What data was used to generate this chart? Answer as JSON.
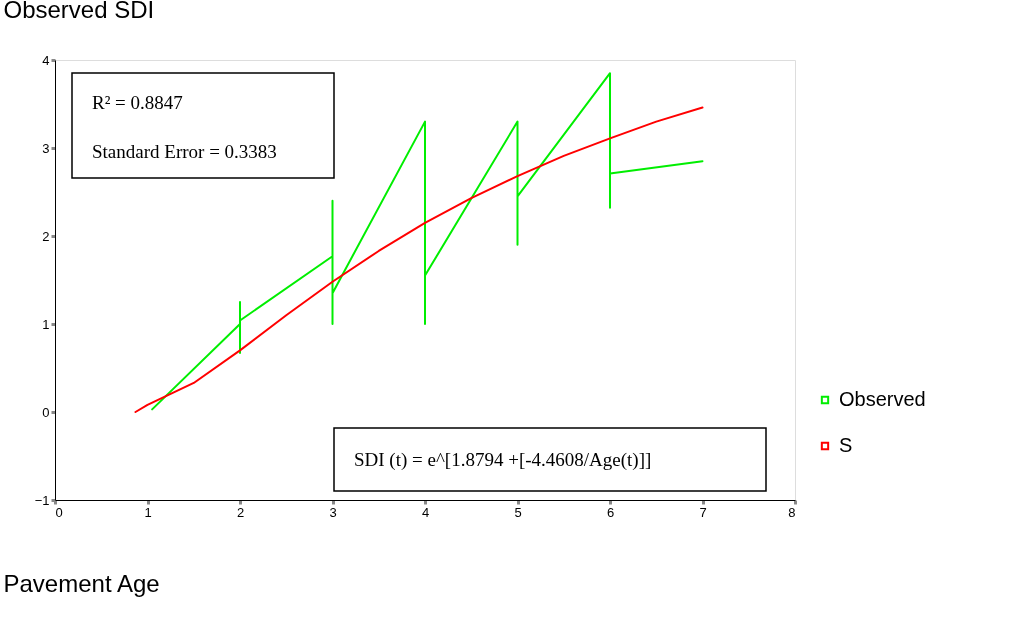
{
  "chart_data": {
    "type": "line",
    "xlabel": "Pavement Age",
    "ylabel": "Observed SDI",
    "xlim": [
      0,
      8
    ],
    "xticks": [
      0,
      1,
      2,
      3,
      4,
      5,
      6,
      7,
      8
    ],
    "ylim": [
      -1,
      4
    ],
    "yticks": [
      -1,
      0,
      1,
      2,
      3,
      4
    ],
    "grid": false,
    "legend": "right",
    "line_style": "solid",
    "annotations": [
      "R² = 0.8847",
      "Standard Error = 0.3383",
      "SDI (t) = e^[1.8794 +[-4.4608/Age(t)]]"
    ],
    "series": [
      {
        "name": "Observed",
        "color": "#00ee00",
        "x": [
          1.05,
          2,
          2,
          2,
          2,
          3,
          3,
          3,
          3,
          4,
          4,
          4,
          5,
          5,
          5,
          6,
          6,
          6,
          7
        ],
        "values": [
          0.03,
          1.0,
          1.25,
          0.67,
          1.04,
          1.77,
          2.4,
          1.0,
          1.35,
          3.3,
          1.0,
          1.55,
          3.3,
          1.9,
          2.45,
          3.85,
          2.32,
          2.71,
          2.85
        ]
      },
      {
        "name": "S",
        "color": "#ff0000",
        "x": [
          0.87,
          1,
          1.5,
          2,
          2.5,
          3,
          3.5,
          4,
          4.5,
          5,
          5.5,
          6,
          6.5,
          7
        ],
        "values": [
          0.0,
          0.08,
          0.33,
          0.7,
          1.1,
          1.48,
          1.83,
          2.15,
          2.43,
          2.68,
          2.91,
          3.11,
          3.3,
          3.46
        ]
      }
    ]
  }
}
